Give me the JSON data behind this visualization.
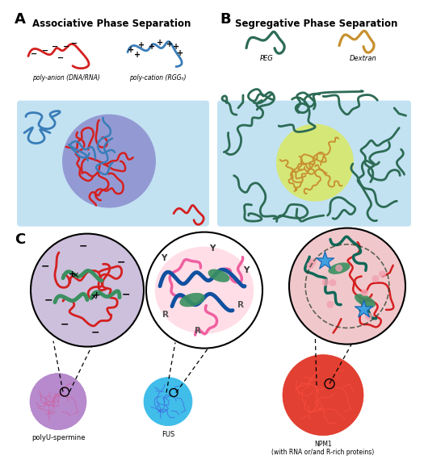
{
  "panel_A_label": "A",
  "panel_B_label": "B",
  "panel_C_label": "C",
  "panel_A_title": "Associative Phase Separation",
  "panel_B_title": "Segregative Phase Separation",
  "red_color": "#d42020",
  "blue_color": "#3a7db8",
  "dark_teal": "#2d6b55",
  "gold": "#c89030",
  "light_blue_bg": "#b8ddf0",
  "purple_circle": "#7878b8",
  "light_purple_bg": "#ccc0dc",
  "pink_bg": "#f0c8cc",
  "green_shape": "#3a9060",
  "pink_line": "#f060a0",
  "label_poly_anion": "poly-anion (DNA/RNA)",
  "label_poly_cation": "poly-cation (RGGₙ)",
  "label_PEG": "PEG",
  "label_Dextran": "Dextran",
  "label_polyU": "polyU-spermine",
  "label_FUS": "FUS",
  "label_NPM1": "NPM1\n(with RNA or/and R-rich proteins)"
}
